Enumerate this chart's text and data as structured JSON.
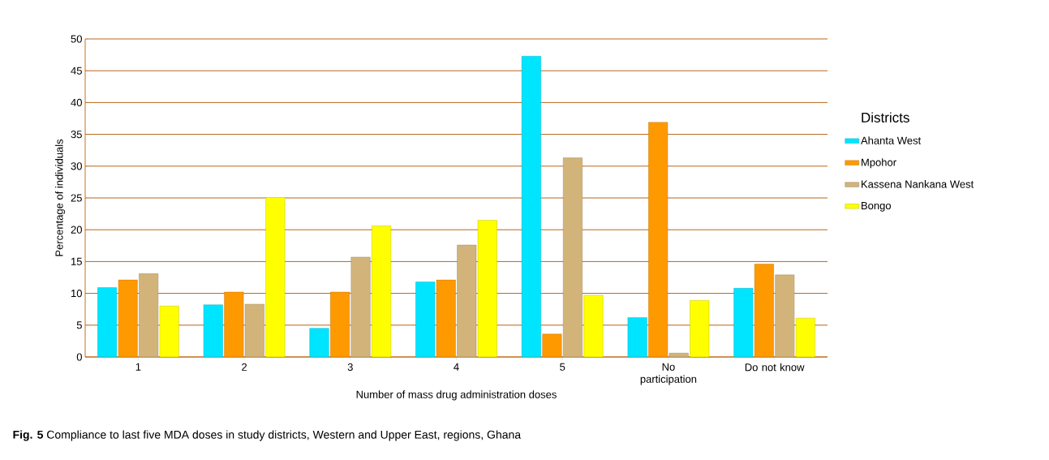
{
  "chart_data": {
    "type": "bar",
    "xlabel": "Number of mass drug administration doses",
    "ylabel": "Percentage of individuals",
    "legend_title": "Districts",
    "categories": [
      "1",
      "2",
      "3",
      "4",
      "5",
      "No participation",
      "Do not know"
    ],
    "series": [
      {
        "name": "Ahanta West",
        "color": "#00e5ff",
        "values": [
          10.9,
          8.2,
          4.5,
          11.8,
          47.3,
          6.2,
          10.8
        ]
      },
      {
        "name": "Mpohor",
        "color": "#ff9900",
        "values": [
          12.1,
          10.2,
          10.2,
          12.1,
          3.6,
          36.9,
          14.6
        ]
      },
      {
        "name": "Kassena Nankana West",
        "color": "#d2b47a",
        "values": [
          13.1,
          8.3,
          15.7,
          17.6,
          31.3,
          0.6,
          12.9
        ]
      },
      {
        "name": "Bongo",
        "color": "#ffff00",
        "values": [
          8.0,
          25.1,
          20.6,
          21.5,
          9.7,
          8.9,
          6.1
        ]
      }
    ],
    "ylim": [
      0,
      50
    ],
    "yticks": [
      0,
      5,
      10,
      15,
      20,
      25,
      30,
      35,
      40,
      45,
      50
    ],
    "grid": "y",
    "legend": "right",
    "annotations": [
      "**Fig. 5** Compliance to last five MDA doses in study districts, Western and Upper East, regions, Ghana"
    ]
  }
}
